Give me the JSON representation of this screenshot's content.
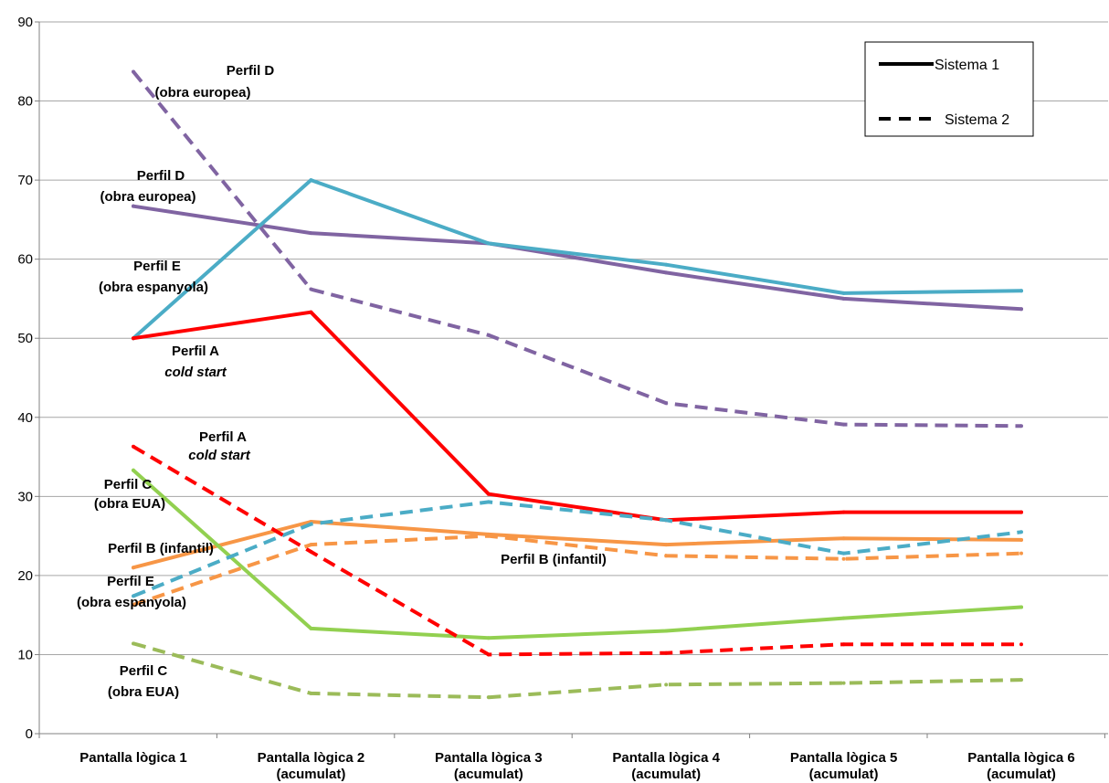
{
  "chart_data": {
    "type": "line",
    "title": "",
    "xlabel": "",
    "ylabel": "",
    "ylim": [
      0,
      90
    ],
    "yticks": [
      0,
      10,
      20,
      30,
      40,
      50,
      60,
      70,
      80,
      90
    ],
    "grid": "horizontal",
    "legend_position": "top-right",
    "categories": [
      [
        "Pantalla lògica 1"
      ],
      [
        "Pantalla lògica 2",
        "(acumulat)"
      ],
      [
        "Pantalla lògica 3",
        "(acumulat)"
      ],
      [
        "Pantalla lògica 4",
        "(acumulat)"
      ],
      [
        "Pantalla lògica 5",
        "(acumulat)"
      ],
      [
        "Pantalla lògica 6",
        "(acumulat)"
      ]
    ],
    "legend": [
      {
        "label": "Sistema 1",
        "style": "solid"
      },
      {
        "label": "Sistema 2",
        "style": "dashed"
      }
    ],
    "series": [
      {
        "profile": "D",
        "sistema": 1,
        "color": "#8064a2",
        "values": [
          66.7,
          63.3,
          62.0,
          58.3,
          55.0,
          53.7
        ]
      },
      {
        "profile": "E",
        "sistema": 1,
        "color": "#4bacc6",
        "values": [
          50.0,
          70.0,
          62.0,
          59.3,
          55.7,
          56.0
        ]
      },
      {
        "profile": "A",
        "sistema": 1,
        "color": "#ff0000",
        "values": [
          50.0,
          53.3,
          30.3,
          27.0,
          28.0,
          28.0
        ]
      },
      {
        "profile": "B",
        "sistema": 1,
        "color": "#f79646",
        "values": [
          21.0,
          26.8,
          25.2,
          23.9,
          24.7,
          24.5
        ]
      },
      {
        "profile": "C",
        "sistema": 1,
        "color": "#92d050",
        "values": [
          33.3,
          13.3,
          12.1,
          13.0,
          14.6,
          16.0
        ]
      },
      {
        "profile": "D",
        "sistema": 2,
        "color": "#8064a2",
        "values": [
          83.7,
          56.2,
          50.4,
          41.8,
          39.1,
          38.9
        ]
      },
      {
        "profile": "E",
        "sistema": 2,
        "color": "#4bacc6",
        "values": [
          17.4,
          26.5,
          29.3,
          27.0,
          22.8,
          25.5
        ]
      },
      {
        "profile": "A",
        "sistema": 2,
        "color": "#ff0000",
        "values": [
          36.3,
          23.0,
          10.0,
          10.2,
          11.3,
          11.3
        ]
      },
      {
        "profile": "B",
        "sistema": 2,
        "color": "#f79646",
        "values": [
          16.3,
          23.9,
          25.0,
          22.5,
          22.1,
          22.8
        ]
      },
      {
        "profile": "C",
        "sistema": 2,
        "color": "#9bbb59",
        "values": [
          11.4,
          5.1,
          4.6,
          6.2,
          6.4,
          6.8
        ]
      }
    ],
    "annotations": [
      {
        "lines": [
          "Perfil D",
          "(obra europea)"
        ]
      },
      {
        "lines": [
          "Perfil D",
          "(obra europea)"
        ]
      },
      {
        "lines": [
          "Perfil E",
          "(obra espanyola)"
        ]
      },
      {
        "lines": [
          "Perfil A",
          "cold start"
        ],
        "italic_line": 1
      },
      {
        "lines": [
          "Perfil A",
          "cold start"
        ],
        "italic_line": 1
      },
      {
        "lines": [
          "Perfil C",
          "(obra EUA)"
        ]
      },
      {
        "lines": [
          "Perfil B (infantil)"
        ]
      },
      {
        "lines": [
          "Perfil E",
          "(obra espanyola)"
        ]
      },
      {
        "lines": [
          "Perfil C",
          "(obra EUA)"
        ]
      },
      {
        "lines": [
          "Perfil B (infantil)"
        ]
      }
    ]
  }
}
